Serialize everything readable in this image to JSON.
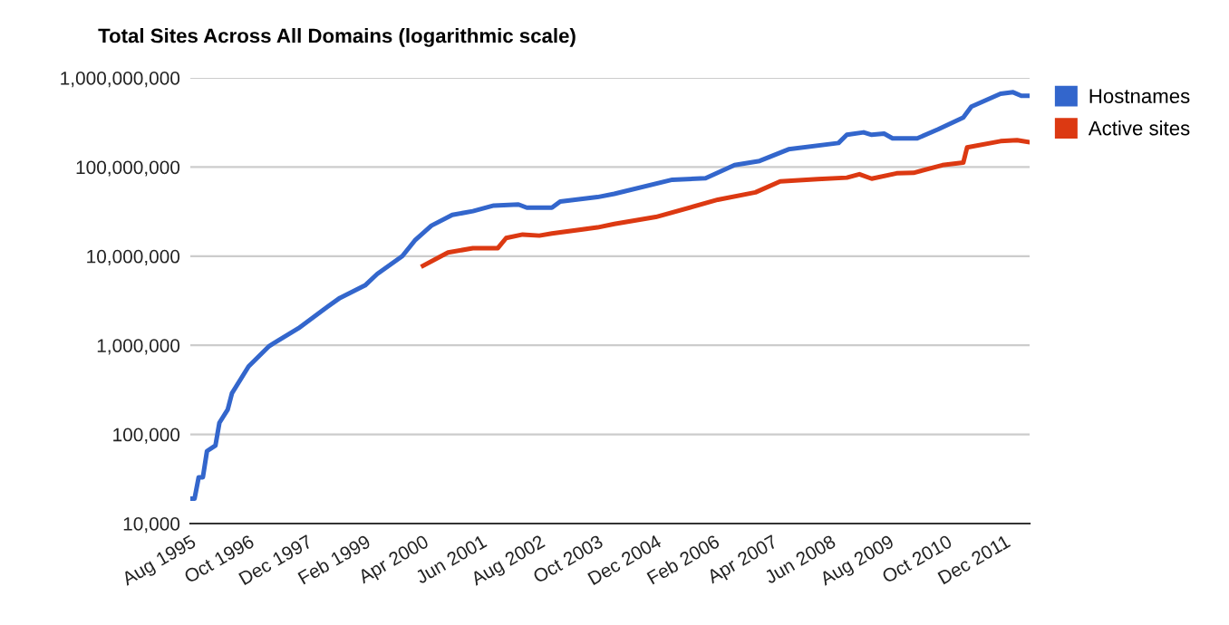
{
  "chart_data": {
    "type": "line",
    "title": "Total Sites Across All Domains (logarithmic scale)",
    "log": "y",
    "grid": "y",
    "legend": "top right",
    "marker": "none",
    "line_style": "solid",
    "ylim": [
      10000,
      1000000000
    ],
    "yticks": [
      {
        "value": 10000,
        "label": "10,000"
      },
      {
        "value": 100000,
        "label": "100,000"
      },
      {
        "value": 1000000,
        "label": "1,000,000"
      },
      {
        "value": 10000000,
        "label": "10,000,000"
      },
      {
        "value": 100000000,
        "label": "100,000,000"
      },
      {
        "value": 1000000000,
        "label": "1,000,000,000"
      }
    ],
    "xlim": [
      "1995-08",
      "2012-06"
    ],
    "xticks": [
      {
        "value": "1995-08",
        "label": "Aug 1995"
      },
      {
        "value": "1996-10",
        "label": "Oct 1996"
      },
      {
        "value": "1997-12",
        "label": "Dec 1997"
      },
      {
        "value": "1999-02",
        "label": "Feb 1999"
      },
      {
        "value": "2000-04",
        "label": "Apr 2000"
      },
      {
        "value": "2001-06",
        "label": "Jun 2001"
      },
      {
        "value": "2002-08",
        "label": "Aug 2002"
      },
      {
        "value": "2003-10",
        "label": "Oct 2003"
      },
      {
        "value": "2004-12",
        "label": "Dec 2004"
      },
      {
        "value": "2006-02",
        "label": "Feb 2006"
      },
      {
        "value": "2007-04",
        "label": "Apr 2007"
      },
      {
        "value": "2008-06",
        "label": "Jun 2008"
      },
      {
        "value": "2009-08",
        "label": "Aug 2009"
      },
      {
        "value": "2010-10",
        "label": "Oct 2010"
      },
      {
        "value": "2011-12",
        "label": "Dec 2011"
      }
    ],
    "series": [
      {
        "name": "Hostnames",
        "color": "#3366cc",
        "x": [
          "1995-08",
          "1995-09",
          "1995-10",
          "1995-11",
          "1995-12",
          "1996-02",
          "1996-03",
          "1996-05",
          "1996-06",
          "1996-10",
          "1997-03",
          "1997-04",
          "1997-10",
          "1998-05",
          "1998-08",
          "1999-02",
          "1999-05",
          "1999-11",
          "2000-02",
          "2000-06",
          "2000-11",
          "2001-04",
          "2001-09",
          "2002-03",
          "2002-05",
          "2002-11",
          "2003-01",
          "2003-10",
          "2004-02",
          "2005-04",
          "2005-12",
          "2006-07",
          "2007-01",
          "2007-08",
          "2008-08",
          "2008-10",
          "2009-02",
          "2009-04",
          "2009-07",
          "2009-09",
          "2010-03",
          "2010-08",
          "2011-02",
          "2011-04",
          "2011-11",
          "2012-02",
          "2012-04",
          "2012-06"
        ],
        "values": [
          19000,
          19000,
          33000,
          33000,
          65000,
          75000,
          135000,
          190000,
          290000,
          580000,
          980000,
          1050000,
          1550000,
          2700000,
          3400000,
          4700000,
          6300000,
          10000000,
          15000000,
          22000000,
          29000000,
          32000000,
          37000000,
          38000000,
          35000000,
          35000000,
          41000000,
          46000000,
          50000000,
          72000000,
          75000000,
          105000000,
          117000000,
          158000000,
          186000000,
          230000000,
          245000000,
          230000000,
          237000000,
          210000000,
          210000000,
          265000000,
          360000000,
          475000000,
          665000000,
          690000000,
          630000000,
          630000000
        ]
      },
      {
        "name": "Active sites",
        "color": "#dc3912",
        "x": [
          "2000-04",
          "2000-10",
          "2001-04",
          "2001-10",
          "2001-12",
          "2002-04",
          "2002-08",
          "2002-11",
          "2003-10",
          "2004-02",
          "2004-12",
          "2006-03",
          "2006-12",
          "2007-06",
          "2008-03",
          "2008-10",
          "2009-01",
          "2009-04",
          "2009-10",
          "2010-02",
          "2010-09",
          "2011-02",
          "2011-03",
          "2011-11",
          "2012-03",
          "2012-06"
        ],
        "values": [
          7800000,
          11000000,
          12300000,
          12300000,
          16000000,
          17500000,
          17000000,
          18000000,
          21000000,
          23000000,
          27500000,
          43000000,
          52000000,
          69000000,
          73000000,
          76000000,
          83000000,
          74000000,
          85000000,
          86000000,
          105000000,
          112000000,
          166000000,
          195000000,
          200000000,
          190000000
        ]
      }
    ]
  }
}
